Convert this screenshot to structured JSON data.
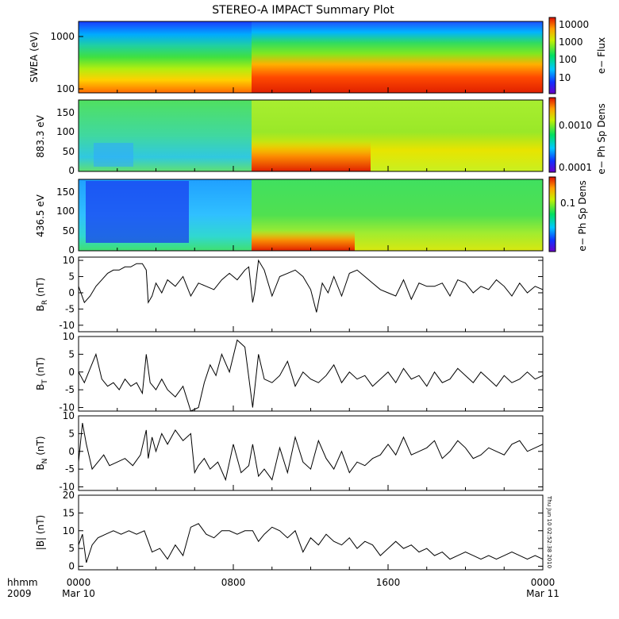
{
  "title": "STEREO-A IMPACT Summary Plot",
  "timestamp_label": "Thu Jun 10 02:52:38 2010",
  "x_axis": {
    "row_label": "hhmm",
    "year_label": "2009",
    "ticks": [
      "0000",
      "0800",
      "1600",
      "0000"
    ],
    "dates": [
      "Mar 10",
      "",
      "",
      "Mar 11"
    ],
    "range_hours": [
      0,
      24
    ]
  },
  "chart_data": [
    {
      "type": "heatmap",
      "id": "swea",
      "ylabel": "SWEA (eV)",
      "y_scale": "log",
      "yticks": [
        "1000",
        "100"
      ],
      "colorbar_label": "e− Flux",
      "colorbar_ticks": [
        "10000",
        "1000",
        "100",
        "10"
      ]
    },
    {
      "type": "heatmap",
      "id": "pad_883",
      "ylabel": "883.3 eV",
      "ylim": [
        0,
        180
      ],
      "yticks": [
        "150",
        "100",
        "50",
        "0"
      ],
      "colorbar_label": "e− Ph Sp Dens",
      "colorbar_ticks": [
        "0.0010",
        "0.0001"
      ],
      "colorbar_scale": "log"
    },
    {
      "type": "heatmap",
      "id": "pad_436",
      "ylabel": "436.5 eV",
      "ylim": [
        0,
        180
      ],
      "yticks": [
        "150",
        "100",
        "50",
        "0"
      ],
      "colorbar_label": "e− Ph Sp Dens",
      "colorbar_ticks": [
        "0.1"
      ],
      "colorbar_scale": "log"
    },
    {
      "type": "line",
      "id": "br",
      "ylabel": "BR (nT)",
      "ylabel_main": "B",
      "ylabel_sub": "R",
      "ylabel_unit": " (nT)",
      "ylim": [
        -12,
        11
      ],
      "yticks": [
        10,
        5,
        0,
        -5,
        -10
      ],
      "x": [
        0,
        0.3,
        0.6,
        0.9,
        1.2,
        1.5,
        1.8,
        2.1,
        2.4,
        2.7,
        3.0,
        3.3,
        3.5,
        3.6,
        3.8,
        4.0,
        4.3,
        4.6,
        5.0,
        5.4,
        5.8,
        6.2,
        6.6,
        7.0,
        7.4,
        7.8,
        8.2,
        8.6,
        8.8,
        9.0,
        9.1,
        9.3,
        9.6,
        10.0,
        10.4,
        10.8,
        11.2,
        11.6,
        12.0,
        12.3,
        12.6,
        12.9,
        13.2,
        13.6,
        14.0,
        14.4,
        14.8,
        15.2,
        15.6,
        16.0,
        16.4,
        16.8,
        17.2,
        17.6,
        18.0,
        18.4,
        18.8,
        19.2,
        19.6,
        20.0,
        20.4,
        20.8,
        21.2,
        21.6,
        22.0,
        22.4,
        22.8,
        23.2,
        23.6,
        24.0
      ],
      "values": [
        2,
        -3,
        -1,
        2,
        4,
        6,
        7,
        7,
        8,
        8,
        9,
        9,
        7,
        -3,
        -1,
        3,
        0,
        4,
        2,
        5,
        -1,
        3,
        2,
        1,
        4,
        6,
        4,
        7,
        8,
        -3,
        0,
        10,
        7,
        -1,
        5,
        6,
        7,
        5,
        1,
        -6,
        3,
        0,
        5,
        -1,
        6,
        7,
        5,
        3,
        1,
        0,
        -1,
        4,
        -2,
        3,
        2,
        2,
        3,
        -1,
        4,
        3,
        0,
        2,
        1,
        4,
        2,
        -1,
        3,
        0,
        2,
        1
      ]
    },
    {
      "type": "line",
      "id": "bt",
      "ylabel": "BT (nT)",
      "ylabel_main": "B",
      "ylabel_sub": "T",
      "ylabel_unit": " (nT)",
      "ylim": [
        -11,
        10
      ],
      "yticks": [
        10,
        5,
        0,
        -5,
        -10
      ],
      "x": [
        0,
        0.3,
        0.6,
        0.9,
        1.2,
        1.5,
        1.8,
        2.1,
        2.4,
        2.7,
        3.0,
        3.3,
        3.5,
        3.7,
        4.0,
        4.3,
        4.6,
        5.0,
        5.4,
        5.8,
        6.2,
        6.5,
        6.8,
        7.1,
        7.4,
        7.8,
        8.2,
        8.6,
        9.0,
        9.3,
        9.6,
        10.0,
        10.4,
        10.8,
        11.2,
        11.6,
        12.0,
        12.4,
        12.8,
        13.2,
        13.6,
        14.0,
        14.4,
        14.8,
        15.2,
        15.6,
        16.0,
        16.4,
        16.8,
        17.2,
        17.6,
        18.0,
        18.4,
        18.8,
        19.2,
        19.6,
        20.0,
        20.4,
        20.8,
        21.2,
        21.6,
        22.0,
        22.4,
        22.8,
        23.2,
        23.6,
        24.0
      ],
      "values": [
        0,
        -3,
        1,
        5,
        -2,
        -4,
        -3,
        -5,
        -2,
        -4,
        -3,
        -6,
        5,
        -3,
        -5,
        -2,
        -5,
        -7,
        -4,
        -11,
        -10,
        -3,
        2,
        -1,
        5,
        0,
        9,
        7,
        -10,
        5,
        -2,
        -3,
        -1,
        3,
        -4,
        0,
        -2,
        -3,
        -1,
        2,
        -3,
        0,
        -2,
        -1,
        -4,
        -2,
        0,
        -3,
        1,
        -2,
        -1,
        -4,
        0,
        -3,
        -2,
        1,
        -1,
        -3,
        0,
        -2,
        -4,
        -1,
        -3,
        -2,
        0,
        -2,
        -1
      ]
    },
    {
      "type": "line",
      "id": "bn",
      "ylabel": "BN (nT)",
      "ylabel_main": "B",
      "ylabel_sub": "N",
      "ylabel_unit": " (nT)",
      "ylim": [
        -11,
        10
      ],
      "yticks": [
        10,
        5,
        0,
        -5,
        -10
      ],
      "x": [
        0,
        0.2,
        0.4,
        0.7,
        1.0,
        1.3,
        1.6,
        2.0,
        2.4,
        2.8,
        3.2,
        3.5,
        3.6,
        3.8,
        4.0,
        4.3,
        4.6,
        5.0,
        5.4,
        5.8,
        6.0,
        6.2,
        6.5,
        6.8,
        7.2,
        7.6,
        8.0,
        8.4,
        8.8,
        9.0,
        9.3,
        9.6,
        10.0,
        10.4,
        10.8,
        11.2,
        11.6,
        12.0,
        12.4,
        12.8,
        13.2,
        13.6,
        14.0,
        14.4,
        14.8,
        15.2,
        15.6,
        16.0,
        16.4,
        16.8,
        17.2,
        17.6,
        18.0,
        18.4,
        18.8,
        19.2,
        19.6,
        20.0,
        20.4,
        20.8,
        21.2,
        21.6,
        22.0,
        22.4,
        22.8,
        23.2,
        23.6,
        24.0
      ],
      "values": [
        -3,
        8,
        2,
        -5,
        -3,
        -1,
        -4,
        -3,
        -2,
        -4,
        -1,
        6,
        -2,
        4,
        0,
        5,
        2,
        6,
        3,
        5,
        -6,
        -4,
        -2,
        -5,
        -3,
        -8,
        2,
        -6,
        -4,
        2,
        -7,
        -5,
        -8,
        1,
        -6,
        4,
        -3,
        -5,
        3,
        -2,
        -5,
        0,
        -6,
        -3,
        -4,
        -2,
        -1,
        2,
        -1,
        4,
        -1,
        0,
        1,
        3,
        -2,
        0,
        3,
        1,
        -2,
        -1,
        1,
        0,
        -1,
        2,
        3,
        0,
        1,
        2
      ]
    },
    {
      "type": "line",
      "id": "bmag",
      "ylabel": "|B| (nT)",
      "ylabel_main": "|B|",
      "ylabel_sub": "",
      "ylabel_unit": " (nT)",
      "ylim": [
        -1,
        20
      ],
      "yticks": [
        20,
        15,
        10,
        5,
        0
      ],
      "x": [
        0,
        0.2,
        0.4,
        0.7,
        1.0,
        1.4,
        1.8,
        2.2,
        2.6,
        3.0,
        3.4,
        3.6,
        3.8,
        4.2,
        4.6,
        5.0,
        5.4,
        5.8,
        6.2,
        6.6,
        7.0,
        7.4,
        7.8,
        8.2,
        8.6,
        9.0,
        9.3,
        9.6,
        10.0,
        10.4,
        10.8,
        11.2,
        11.6,
        12.0,
        12.4,
        12.8,
        13.2,
        13.6,
        14.0,
        14.4,
        14.8,
        15.2,
        15.6,
        16.0,
        16.4,
        16.8,
        17.2,
        17.6,
        18.0,
        18.4,
        18.8,
        19.2,
        19.6,
        20.0,
        20.4,
        20.8,
        21.2,
        21.6,
        22.0,
        22.4,
        22.8,
        23.2,
        23.6,
        24.0
      ],
      "values": [
        6,
        9,
        1,
        6,
        8,
        9,
        10,
        9,
        10,
        9,
        10,
        7,
        4,
        5,
        2,
        6,
        3,
        11,
        12,
        9,
        8,
        10,
        10,
        9,
        10,
        10,
        7,
        9,
        11,
        10,
        8,
        10,
        4,
        8,
        6,
        9,
        7,
        6,
        8,
        5,
        7,
        6,
        3,
        5,
        7,
        5,
        6,
        4,
        5,
        3,
        4,
        2,
        3,
        4,
        3,
        2,
        3,
        2,
        3,
        4,
        3,
        2,
        3,
        2
      ]
    }
  ]
}
